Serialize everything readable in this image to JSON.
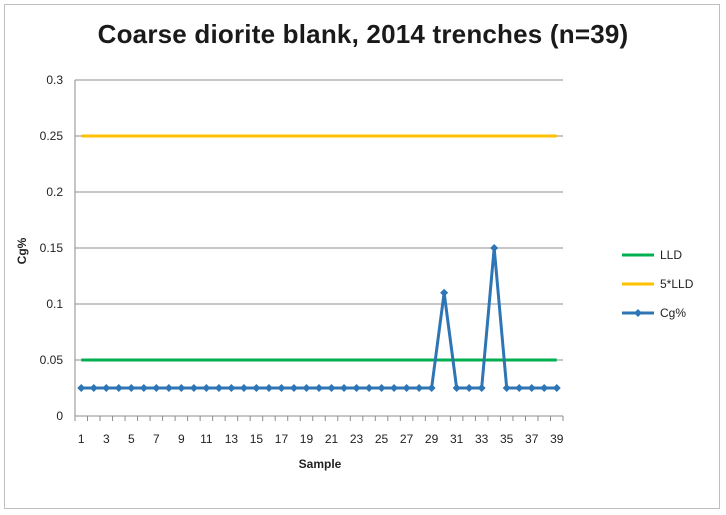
{
  "chart_data": {
    "type": "line",
    "title": "Coarse diorite blank, 2014 trenches (n=39)",
    "xlabel": "Sample",
    "ylabel": "Cg%",
    "ylim": [
      0,
      0.3
    ],
    "yticks": [
      "0",
      "0.05",
      "0.1",
      "0.15",
      "0.2",
      "0.25",
      "0.3"
    ],
    "ytick_values": [
      0,
      0.05,
      0.1,
      0.15,
      0.2,
      0.25,
      0.3
    ],
    "x": [
      1,
      2,
      3,
      4,
      5,
      6,
      7,
      8,
      9,
      10,
      11,
      12,
      13,
      14,
      15,
      16,
      17,
      18,
      19,
      20,
      21,
      22,
      23,
      24,
      25,
      26,
      27,
      28,
      29,
      30,
      31,
      32,
      33,
      34,
      35,
      36,
      37,
      38,
      39
    ],
    "xtick_labels": [
      "1",
      "3",
      "5",
      "7",
      "9",
      "11",
      "13",
      "15",
      "17",
      "19",
      "21",
      "23",
      "25",
      "27",
      "29",
      "31",
      "33",
      "35",
      "37",
      "39"
    ],
    "xtick_label_values": [
      1,
      3,
      5,
      7,
      9,
      11,
      13,
      15,
      17,
      19,
      21,
      23,
      25,
      27,
      29,
      31,
      33,
      35,
      37,
      39
    ],
    "grid": true,
    "legend_position": "right",
    "series": [
      {
        "name": "LLD",
        "color": "#00b050",
        "values": [
          0.05,
          0.05,
          0.05,
          0.05,
          0.05,
          0.05,
          0.05,
          0.05,
          0.05,
          0.05,
          0.05,
          0.05,
          0.05,
          0.05,
          0.05,
          0.05,
          0.05,
          0.05,
          0.05,
          0.05,
          0.05,
          0.05,
          0.05,
          0.05,
          0.05,
          0.05,
          0.05,
          0.05,
          0.05,
          0.05,
          0.05,
          0.05,
          0.05,
          0.05,
          0.05,
          0.05,
          0.05,
          0.05,
          0.05
        ]
      },
      {
        "name": "5*LLD",
        "color": "#ffc000",
        "values": [
          0.25,
          0.25,
          0.25,
          0.25,
          0.25,
          0.25,
          0.25,
          0.25,
          0.25,
          0.25,
          0.25,
          0.25,
          0.25,
          0.25,
          0.25,
          0.25,
          0.25,
          0.25,
          0.25,
          0.25,
          0.25,
          0.25,
          0.25,
          0.25,
          0.25,
          0.25,
          0.25,
          0.25,
          0.25,
          0.25,
          0.25,
          0.25,
          0.25,
          0.25,
          0.25,
          0.25,
          0.25,
          0.25,
          0.25
        ]
      },
      {
        "name": "Cg%",
        "color": "#2e75b6",
        "marker": "diamond",
        "values": [
          0.025,
          0.025,
          0.025,
          0.025,
          0.025,
          0.025,
          0.025,
          0.025,
          0.025,
          0.025,
          0.025,
          0.025,
          0.025,
          0.025,
          0.025,
          0.025,
          0.025,
          0.025,
          0.025,
          0.025,
          0.025,
          0.025,
          0.025,
          0.025,
          0.025,
          0.025,
          0.025,
          0.025,
          0.025,
          0.11,
          0.025,
          0.025,
          0.025,
          0.15,
          0.025,
          0.025,
          0.025,
          0.025,
          0.025
        ]
      }
    ]
  }
}
